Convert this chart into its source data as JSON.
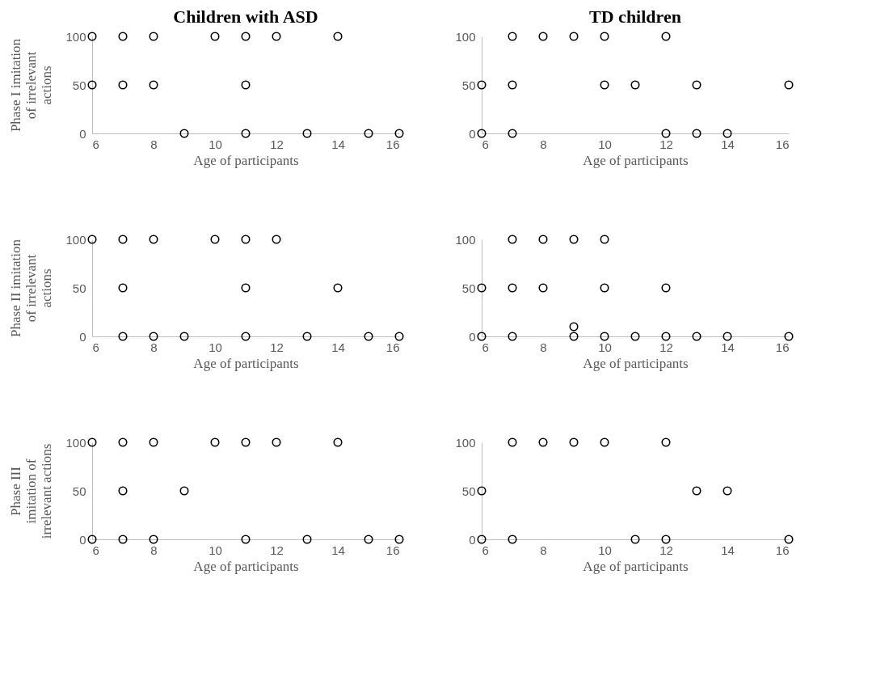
{
  "chart_data": [
    {
      "type": "scatter",
      "title": "Children with ASD",
      "xlabel": "Age of participants",
      "ylabel": "Phase I imitation\nof irrelevant\nactions",
      "xlim": [
        6,
        16
      ],
      "xticks": [
        6,
        8,
        10,
        12,
        14,
        16
      ],
      "ylim": [
        0,
        100
      ],
      "yticks": [
        0,
        50,
        100
      ],
      "grid": false,
      "marker": "circle",
      "series": [
        {
          "color": "#000000",
          "x": [
            6,
            7,
            8,
            10,
            11,
            12,
            14,
            6,
            7,
            8,
            11,
            9,
            11,
            13,
            15,
            16
          ],
          "values": [
            100,
            100,
            100,
            100,
            100,
            100,
            100,
            50,
            50,
            50,
            50,
            0,
            0,
            0,
            0,
            0
          ]
        }
      ]
    },
    {
      "type": "scatter",
      "title": "TD children",
      "xlabel": "Age of participants",
      "xlim": [
        6,
        16
      ],
      "xticks": [
        6,
        8,
        10,
        12,
        14,
        16
      ],
      "ylim": [
        0,
        100
      ],
      "yticks": [
        0,
        50,
        100
      ],
      "grid": false,
      "marker": "circle",
      "series": [
        {
          "color": "#000000",
          "x": [
            7,
            8,
            9,
            10,
            12,
            6,
            7,
            10,
            11,
            13,
            16,
            6,
            7,
            12,
            13,
            14
          ],
          "values": [
            100,
            100,
            100,
            100,
            100,
            50,
            50,
            50,
            50,
            50,
            50,
            0,
            0,
            0,
            0,
            0
          ]
        }
      ]
    },
    {
      "type": "scatter",
      "xlabel": "Age of participants",
      "ylabel": "Phase II imitation\nof irrelevant\nactions",
      "xlim": [
        6,
        16
      ],
      "xticks": [
        6,
        8,
        10,
        12,
        14,
        16
      ],
      "ylim": [
        0,
        100
      ],
      "yticks": [
        0,
        50,
        100
      ],
      "grid": false,
      "marker": "circle",
      "series": [
        {
          "color": "#000000",
          "x": [
            6,
            7,
            8,
            10,
            11,
            12,
            7,
            11,
            14,
            7,
            8,
            9,
            11,
            13,
            15,
            16
          ],
          "values": [
            100,
            100,
            100,
            100,
            100,
            100,
            50,
            50,
            50,
            0,
            0,
            0,
            0,
            0,
            0,
            0
          ]
        }
      ]
    },
    {
      "type": "scatter",
      "xlabel": "Age of participants",
      "xlim": [
        6,
        16
      ],
      "xticks": [
        6,
        8,
        10,
        12,
        14,
        16
      ],
      "ylim": [
        0,
        100
      ],
      "yticks": [
        0,
        50,
        100
      ],
      "grid": false,
      "marker": "circle",
      "series": [
        {
          "color": "#000000",
          "x": [
            7,
            8,
            9,
            10,
            6,
            7,
            8,
            10,
            12,
            9,
            6,
            7,
            9,
            10,
            11,
            12,
            13,
            14,
            16
          ],
          "values": [
            100,
            100,
            100,
            100,
            50,
            50,
            50,
            50,
            50,
            10,
            0,
            0,
            0,
            0,
            0,
            0,
            0,
            0,
            0
          ]
        }
      ]
    },
    {
      "type": "scatter",
      "xlabel": "Age of participants",
      "ylabel": "Phase III\nimitation of\nirrelevant actions",
      "xlim": [
        6,
        16
      ],
      "xticks": [
        6,
        8,
        10,
        12,
        14,
        16
      ],
      "ylim": [
        0,
        100
      ],
      "yticks": [
        0,
        50,
        100
      ],
      "grid": false,
      "marker": "circle",
      "series": [
        {
          "color": "#000000",
          "x": [
            6,
            7,
            8,
            10,
            11,
            12,
            14,
            7,
            9,
            6,
            7,
            8,
            11,
            13,
            15,
            16
          ],
          "values": [
            100,
            100,
            100,
            100,
            100,
            100,
            100,
            50,
            50,
            0,
            0,
            0,
            0,
            0,
            0,
            0
          ]
        }
      ]
    },
    {
      "type": "scatter",
      "xlabel": "Age of participants",
      "xlim": [
        6,
        16
      ],
      "xticks": [
        6,
        8,
        10,
        12,
        14,
        16
      ],
      "ylim": [
        0,
        100
      ],
      "yticks": [
        0,
        50,
        100
      ],
      "grid": false,
      "marker": "circle",
      "series": [
        {
          "color": "#000000",
          "x": [
            7,
            8,
            9,
            10,
            12,
            6,
            13,
            14,
            6,
            7,
            11,
            12,
            16
          ],
          "values": [
            100,
            100,
            100,
            100,
            100,
            50,
            50,
            50,
            0,
            0,
            0,
            0,
            0
          ]
        }
      ]
    }
  ]
}
